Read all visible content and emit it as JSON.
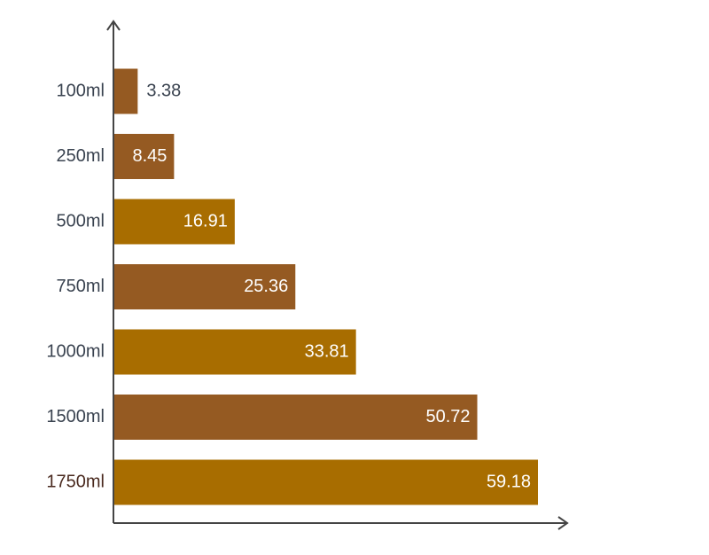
{
  "chart_data": {
    "type": "bar",
    "orientation": "horizontal",
    "title": "",
    "xlabel": "",
    "ylabel": "",
    "categories": [
      "100ml",
      "250ml",
      "500ml",
      "750ml",
      "1000ml",
      "1500ml",
      "1750ml"
    ],
    "values": [
      3.38,
      8.45,
      16.91,
      25.36,
      33.81,
      50.72,
      59.18
    ],
    "value_labels": [
      "3.38",
      "8.45",
      "16.91",
      "25.36",
      "33.81",
      "50.72",
      "59.18"
    ],
    "bar_colors": [
      "#955a22",
      "#955a22",
      "#a86d00",
      "#955a22",
      "#a86d00",
      "#955a22",
      "#a86d00"
    ],
    "category_label_colors": [
      "#3a4350",
      "#3a4350",
      "#3a4350",
      "#3a4350",
      "#3a4350",
      "#3a4350",
      "#4a2a1f"
    ],
    "xlim": [
      0,
      59.18
    ],
    "grid": false,
    "legend": "none",
    "axis_color": "#444444",
    "inside_label_color": "#ffffff",
    "outside_label_color": "#3a4350"
  }
}
